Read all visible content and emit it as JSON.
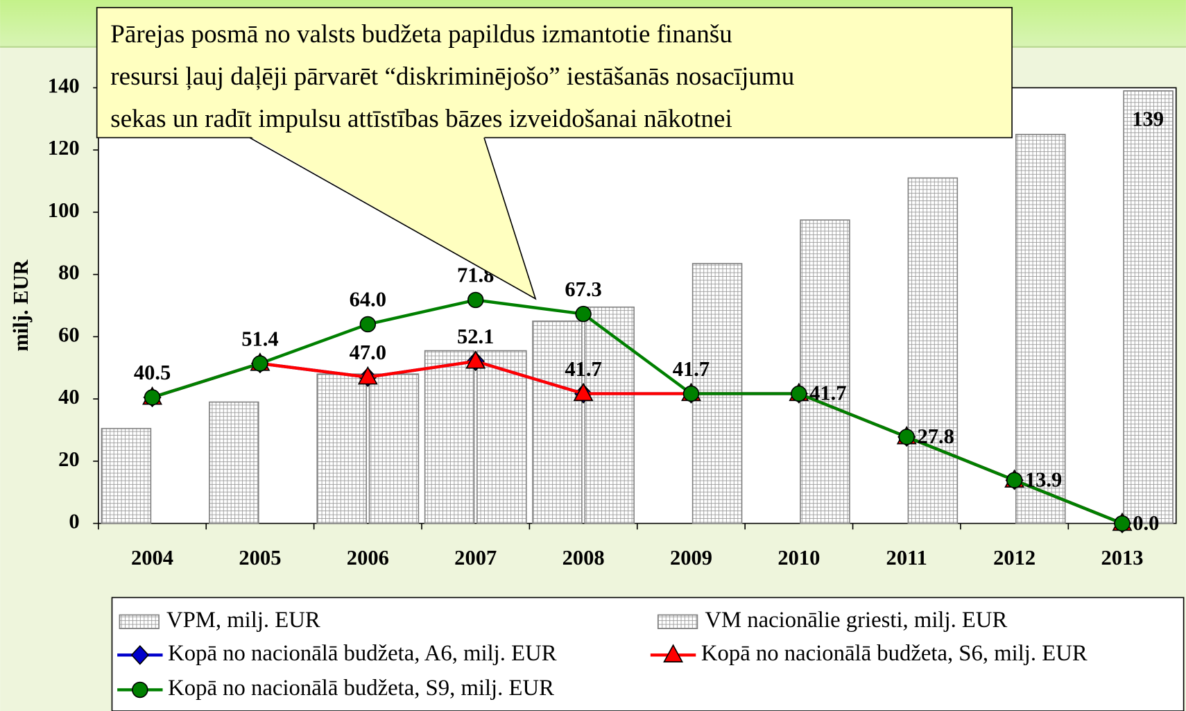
{
  "chart_data": {
    "type": "bar",
    "annotation": [
      "Pārejas posmā no valsts budžeta papildus izmantotie finanšu",
      "resursi ļauj daļēji pārvarēt “diskriminējošo” iestāšanās nosacījumu",
      "sekas un radīt impulsu attīstības bāzes izveidošanai nākotnei"
    ],
    "y_label": "milj. EUR",
    "categories": [
      "2004",
      "2005",
      "2006",
      "2007",
      "2008",
      "2009",
      "2010",
      "2011",
      "2012",
      "2013"
    ],
    "ylim": [
      0,
      140
    ],
    "yticks": [
      0,
      20,
      40,
      60,
      80,
      100,
      120,
      140
    ],
    "series": [
      {
        "name": "VPM, milj. EUR",
        "type": "bar",
        "color": "#808080",
        "values": [
          30.5,
          39,
          48,
          55.5,
          65,
          null,
          null,
          null,
          null,
          null
        ]
      },
      {
        "name": "VM nacionālie griesti, milj. EUR",
        "type": "bar",
        "color": "#808080",
        "values": [
          null,
          null,
          48,
          55.5,
          69.5,
          83.5,
          97.5,
          111,
          125,
          139
        ],
        "value_labels": [
          null,
          null,
          null,
          null,
          null,
          null,
          null,
          null,
          null,
          "139"
        ]
      },
      {
        "name": "Kopā no nacionālā budžeta, A6, milj. EUR",
        "type": "line",
        "marker": "diamond",
        "color": "#0000cc",
        "values": [
          40.5,
          51.4,
          47.0,
          52.1,
          41.7,
          41.7,
          41.7,
          27.8,
          13.9,
          0.0
        ]
      },
      {
        "name": "Kopā no nacionālā budžeta, S6, milj. EUR",
        "type": "line",
        "marker": "triangle",
        "color": "#ff0000",
        "values": [
          40.5,
          51.4,
          47.0,
          52.1,
          41.7,
          41.7,
          41.7,
          27.8,
          13.9,
          0.0
        ],
        "value_labels": [
          null,
          null,
          "47.0",
          "52.1",
          "41.7",
          null,
          null,
          null,
          null,
          null
        ]
      },
      {
        "name": "Kopā no nacionālā budžeta, S9, milj. EUR",
        "type": "line",
        "marker": "circle",
        "color": "#008000",
        "values": [
          40.5,
          51.4,
          64.0,
          71.8,
          67.3,
          41.7,
          41.7,
          27.8,
          13.9,
          0.0
        ],
        "value_labels": [
          "40.5",
          "51.4",
          "64.0",
          "71.8",
          "67.3",
          "41.7",
          "41.7",
          "27.8",
          "13.9",
          "0.0"
        ]
      }
    ]
  }
}
